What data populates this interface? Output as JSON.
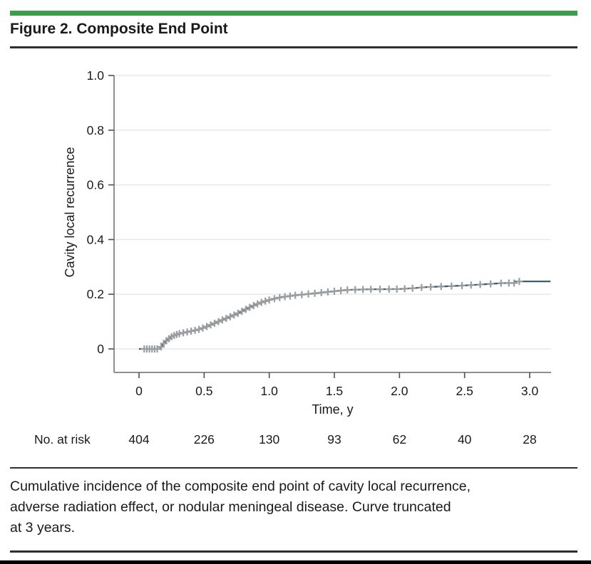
{
  "header": {
    "title": "Figure 2. Composite End Point"
  },
  "caption": {
    "lines": [
      "Cumulative incidence of the composite end point of cavity local recurrence,",
      "adverse radiation effect, or nodular meningeal disease. Curve truncated",
      "at 3 years."
    ]
  },
  "colors": {
    "accent_green": "#3C9E4D",
    "rule": "#2F2F2F",
    "curve": "#31566B",
    "censor": "#9B9EA1",
    "gridline": "#E8E8E8",
    "axis": "#8F8F8F",
    "tick": "#4F4F4F",
    "text": "#1A1A1A"
  },
  "chart_data": {
    "type": "line",
    "subtype": "cumulative-incidence",
    "title": "Figure 2. Composite End Point",
    "xlabel": "Time, y",
    "ylabel": "Cavity local recurrence",
    "xlim": [
      0,
      3.16
    ],
    "ylim": [
      0,
      1.0
    ],
    "xticks": [
      0,
      0.5,
      1.0,
      1.5,
      2.0,
      2.5,
      3.0
    ],
    "xtick_labels": [
      "0",
      "0.5",
      "1.0",
      "1.5",
      "2.0",
      "2.5",
      "3.0"
    ],
    "yticks": [
      0,
      0.2,
      0.4,
      0.6,
      0.8,
      1.0
    ],
    "ytick_labels": [
      "0",
      "0.2",
      "0.4",
      "0.6",
      "0.8",
      "1.0"
    ],
    "grid": "horizontal",
    "legend": "none",
    "series": [
      {
        "name": "Composite end point cumulative incidence",
        "color": "#31566B",
        "points": [
          [
            0,
            0
          ],
          [
            0.16,
            0
          ],
          [
            0.18,
            0.015
          ],
          [
            0.21,
            0.03
          ],
          [
            0.25,
            0.045
          ],
          [
            0.3,
            0.055
          ],
          [
            0.35,
            0.06
          ],
          [
            0.4,
            0.065
          ],
          [
            0.45,
            0.07
          ],
          [
            0.5,
            0.078
          ],
          [
            0.55,
            0.088
          ],
          [
            0.6,
            0.098
          ],
          [
            0.65,
            0.108
          ],
          [
            0.7,
            0.118
          ],
          [
            0.75,
            0.128
          ],
          [
            0.8,
            0.14
          ],
          [
            0.85,
            0.152
          ],
          [
            0.9,
            0.163
          ],
          [
            0.95,
            0.172
          ],
          [
            1.0,
            0.179
          ],
          [
            1.05,
            0.185
          ],
          [
            1.1,
            0.19
          ],
          [
            1.2,
            0.196
          ],
          [
            1.3,
            0.201
          ],
          [
            1.4,
            0.206
          ],
          [
            1.5,
            0.211
          ],
          [
            1.6,
            0.216
          ],
          [
            1.75,
            0.218
          ],
          [
            2.0,
            0.219
          ],
          [
            2.1,
            0.222
          ],
          [
            2.2,
            0.226
          ],
          [
            2.35,
            0.229
          ],
          [
            2.5,
            0.232
          ],
          [
            2.6,
            0.235
          ],
          [
            2.7,
            0.238
          ],
          [
            2.8,
            0.241
          ],
          [
            2.88,
            0.241
          ],
          [
            2.88,
            0.247
          ],
          [
            3.16,
            0.247
          ]
        ]
      }
    ],
    "censor_marks": {
      "color": "#9B9EA1",
      "times": [
        0.04,
        0.06,
        0.08,
        0.1,
        0.12,
        0.14,
        0.17,
        0.19,
        0.21,
        0.23,
        0.25,
        0.27,
        0.29,
        0.31,
        0.34,
        0.37,
        0.4,
        0.43,
        0.46,
        0.49,
        0.52,
        0.55,
        0.58,
        0.61,
        0.64,
        0.67,
        0.7,
        0.73,
        0.76,
        0.79,
        0.82,
        0.85,
        0.88,
        0.91,
        0.94,
        0.97,
        1.0,
        1.04,
        1.08,
        1.12,
        1.16,
        1.2,
        1.25,
        1.3,
        1.35,
        1.4,
        1.45,
        1.5,
        1.55,
        1.6,
        1.66,
        1.72,
        1.78,
        1.85,
        1.92,
        1.98,
        2.04,
        2.1,
        2.17,
        2.24,
        2.32,
        2.4,
        2.48,
        2.55,
        2.62,
        2.7,
        2.78,
        2.84,
        2.88,
        2.92
      ]
    },
    "at_risk": {
      "label": "No. at risk",
      "times": [
        0,
        0.5,
        1.0,
        1.5,
        2.0,
        2.5,
        3.0
      ],
      "counts": [
        404,
        226,
        130,
        93,
        62,
        40,
        28
      ]
    }
  }
}
